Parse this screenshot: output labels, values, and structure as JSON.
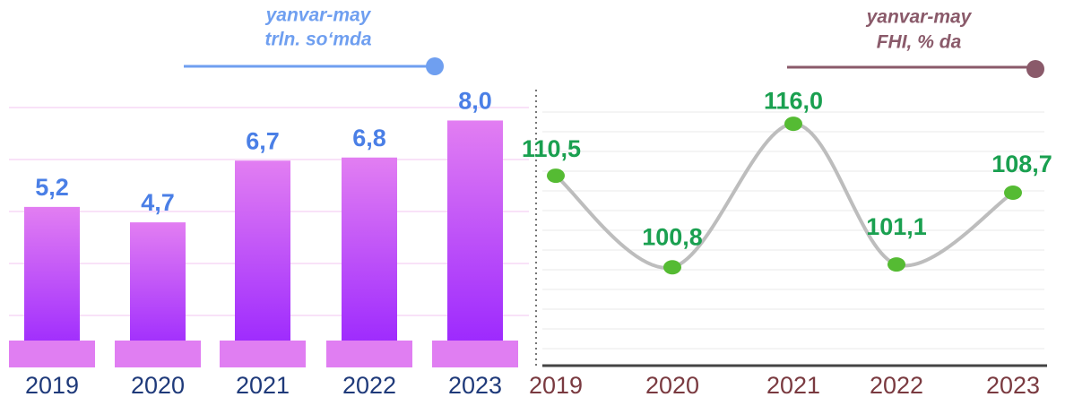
{
  "chart_data": [
    {
      "type": "bar",
      "subtitle": [
        "yanvar-may",
        "trln. so‘mda"
      ],
      "categories": [
        "2019",
        "2020",
        "2021",
        "2022",
        "2023"
      ],
      "values": [
        5.2,
        4.7,
        6.7,
        6.8,
        8.0
      ],
      "value_labels": [
        "5,2",
        "4,7",
        "6,7",
        "6,8",
        "8,0"
      ],
      "color": "#b13cf8",
      "ylim": [
        0,
        9
      ]
    },
    {
      "type": "line",
      "subtitle": [
        "yanvar-may",
        "FHI, % da"
      ],
      "categories": [
        "2019",
        "2020",
        "2021",
        "2022",
        "2023"
      ],
      "values": [
        110.5,
        100.8,
        116.0,
        101.1,
        108.7
      ],
      "value_labels": [
        "110,5",
        "100,8",
        "116,0",
        "101,1",
        "108,7"
      ],
      "color": "#55bb33",
      "ylim": [
        90,
        120
      ]
    }
  ]
}
